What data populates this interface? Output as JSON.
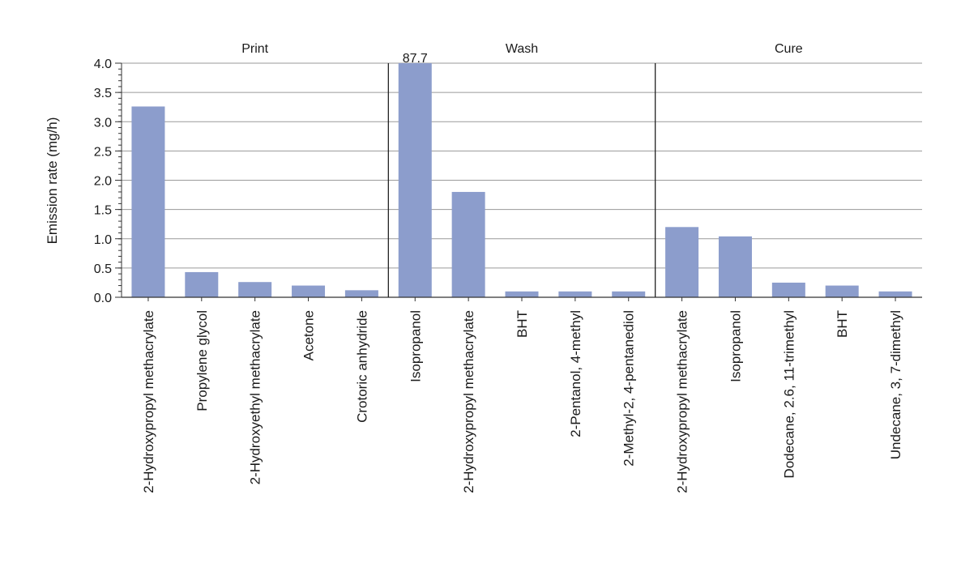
{
  "chart_data": {
    "type": "bar",
    "ylabel": "Emission rate (mg/h)",
    "ylim": [
      0,
      4.0
    ],
    "yticks": [
      "0.0",
      "0.5",
      "1.0",
      "1.5",
      "2.0",
      "2.5",
      "3.0",
      "3.5",
      "4.0"
    ],
    "grid": true,
    "bar_color": "#8c9dcc",
    "panels": [
      {
        "title": "Print",
        "categories": [
          "2-Hydroxypropyl methacrylate",
          "Propylene glycol",
          "2-Hydroxyethyl methacrylate",
          "Acetone",
          "Crotoric anhydride"
        ],
        "values": [
          3.26,
          0.43,
          0.26,
          0.2,
          0.12
        ]
      },
      {
        "title": "Wash",
        "categories": [
          "Isopropanol",
          "2-Hydroxypropyl methacrylate",
          "BHT",
          "2-Pentanol, 4-methyl",
          "2-Methyl-2, 4-pentanediol"
        ],
        "values": [
          87.7,
          1.8,
          0.1,
          0.1,
          0.1
        ],
        "bar_labels": [
          "87.7",
          "",
          "",
          "",
          ""
        ]
      },
      {
        "title": "Cure",
        "categories": [
          "2-Hydroxypropyl methacrylate",
          "Isopropanol",
          "Dodecane, 2.6, 11-trimethyl",
          "BHT",
          "Undecane, 3, 7-dimethyl"
        ],
        "values": [
          1.2,
          1.04,
          0.25,
          0.2,
          0.1
        ]
      }
    ]
  }
}
